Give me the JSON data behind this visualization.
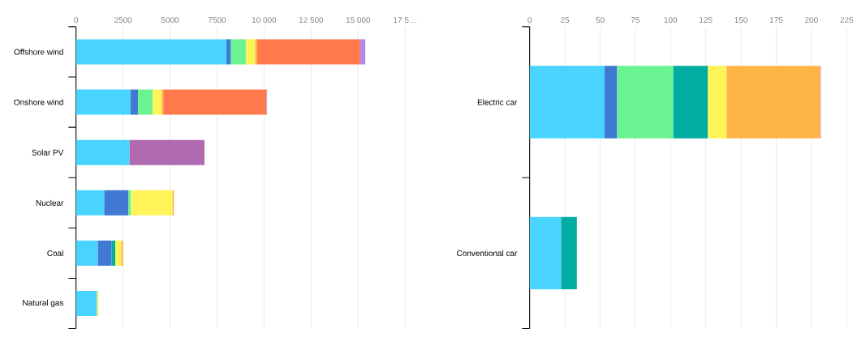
{
  "chart_data": [
    {
      "type": "bar",
      "orientation": "horizontal",
      "stacked": true,
      "grid": "x",
      "categories": [
        "Offshore wind",
        "Onshore wind",
        "Solar PV",
        "Nuclear",
        "Coal",
        "Natural gas"
      ],
      "xlim": [
        0,
        17500
      ],
      "xticks": [
        0,
        2500,
        5000,
        7500,
        {
          "value": 10000,
          "label": "10 000"
        },
        {
          "value": 12500,
          "label": "12 500"
        },
        {
          "value": 15000,
          "label": "15 000"
        },
        {
          "value": 17500,
          "label": "17 5…"
        }
      ],
      "series": [
        {
          "color": "#48d4ff",
          "values": [
            8000,
            2900,
            2850,
            1500,
            1160,
            1120
          ]
        },
        {
          "color": "#3f79d4",
          "values": [
            240,
            400,
            null,
            1280,
            730,
            null
          ]
        },
        {
          "color": "#69f491",
          "values": [
            790,
            780,
            null,
            140,
            null,
            null
          ]
        },
        {
          "color": "#00ada0",
          "values": [
            null,
            null,
            null,
            null,
            200,
            null
          ]
        },
        {
          "color": "#fff35a",
          "values": [
            500,
            470,
            null,
            2210,
            320,
            80
          ]
        },
        {
          "color": "#ffb546",
          "values": [
            110,
            100,
            null,
            70,
            90,
            null
          ]
        },
        {
          "color": "#ff794d",
          "values": [
            5470,
            5480,
            null,
            null,
            null,
            null
          ]
        },
        {
          "color": "#b06ab0",
          "values": [
            null,
            null,
            3980,
            null,
            null,
            null
          ]
        },
        {
          "color": "#b388eb",
          "values": [
            270,
            30,
            null,
            null,
            null,
            null
          ]
        }
      ]
    },
    {
      "type": "bar",
      "orientation": "horizontal",
      "stacked": true,
      "grid": "x",
      "categories": [
        "Electric car",
        "Conventional car"
      ],
      "xlim": [
        0,
        225
      ],
      "xticks": [
        0,
        25,
        50,
        75,
        100,
        125,
        150,
        175,
        200,
        225
      ],
      "series": [
        {
          "color": "#48d4ff",
          "values": [
            53.2,
            22.3
          ]
        },
        {
          "color": "#3f79d4",
          "values": [
            8.9,
            null
          ]
        },
        {
          "color": "#69f491",
          "values": [
            39.9,
            null
          ]
        },
        {
          "color": "#00ada0",
          "values": [
            24.5,
            11.2
          ]
        },
        {
          "color": "#fff35a",
          "values": [
            13.3,
            null
          ]
        },
        {
          "color": "#ffb546",
          "values": [
            66.3,
            null
          ]
        },
        {
          "color": "#e86fa0",
          "values": [
            0.5,
            null
          ]
        }
      ]
    }
  ]
}
